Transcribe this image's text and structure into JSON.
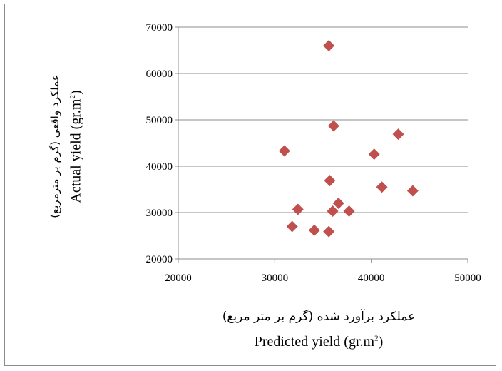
{
  "chart_data": {
    "type": "scatter",
    "x_ticks": [
      "20000",
      "30000",
      "40000",
      "50000"
    ],
    "y_ticks": [
      "20000",
      "30000",
      "40000",
      "50000",
      "60000",
      "70000"
    ],
    "xlim": [
      20000,
      50000
    ],
    "ylim": [
      20000,
      70000
    ],
    "grid": "horizontal",
    "marker": "diamond",
    "marker_color": "#C0504D",
    "xlabel_fa": "عملکرد برآورد شده (گرم بر متر مربع)",
    "xlabel_en_main": "Predicted yield (gr.m",
    "xlabel_en_sup": "2",
    "xlabel_en_tail": ")",
    "ylabel_fa": "عملکرد واقعی (گرم بر مترمربع)",
    "ylabel_en_main": "Actual yield (gr.m",
    "ylabel_en_sup": "2",
    "ylabel_en_tail": ")",
    "points": [
      {
        "x": 35600,
        "y": 66000
      },
      {
        "x": 36100,
        "y": 48700
      },
      {
        "x": 42800,
        "y": 46900
      },
      {
        "x": 31000,
        "y": 43300
      },
      {
        "x": 40300,
        "y": 42600
      },
      {
        "x": 35700,
        "y": 36900
      },
      {
        "x": 41100,
        "y": 35500
      },
      {
        "x": 44300,
        "y": 34700
      },
      {
        "x": 36600,
        "y": 32000
      },
      {
        "x": 36000,
        "y": 30300
      },
      {
        "x": 37700,
        "y": 30300
      },
      {
        "x": 32400,
        "y": 30700
      },
      {
        "x": 31800,
        "y": 27000
      },
      {
        "x": 34100,
        "y": 26200
      },
      {
        "x": 35600,
        "y": 25900
      }
    ]
  }
}
